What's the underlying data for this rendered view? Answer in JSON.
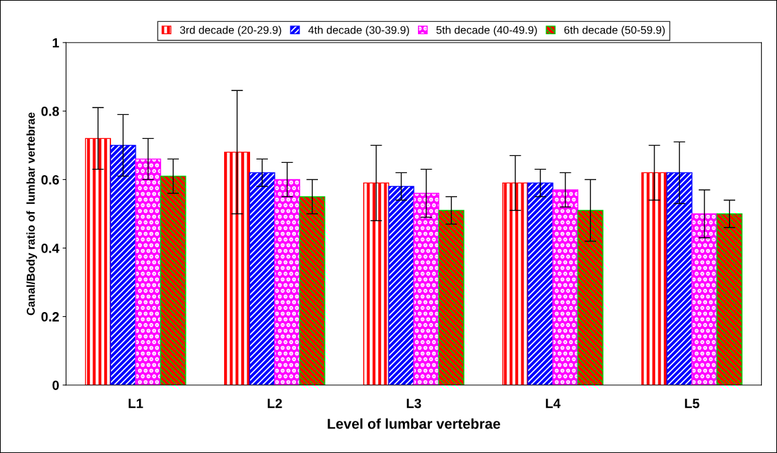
{
  "chart_data": {
    "type": "bar",
    "xlabel": "Level of lumbar vertebrae",
    "ylabel": "Canal/Body ratio of  lumbar vertebrae",
    "categories": [
      "L1",
      "L2",
      "L3",
      "L4",
      "L5"
    ],
    "series": [
      {
        "name": "3rd decade (20-29.9)",
        "color": "#ff0000",
        "values": [
          0.72,
          0.68,
          0.59,
          0.59,
          0.62
        ],
        "errors": [
          0.09,
          0.18,
          0.11,
          0.08,
          0.08
        ]
      },
      {
        "name": "4th decade (30-39.9)",
        "color": "#0000ff",
        "values": [
          0.7,
          0.62,
          0.58,
          0.59,
          0.62
        ],
        "errors": [
          0.09,
          0.04,
          0.04,
          0.04,
          0.09
        ]
      },
      {
        "name": "5th decade (40-49.9)",
        "color": "#ff00ff",
        "values": [
          0.66,
          0.6,
          0.56,
          0.57,
          0.5
        ],
        "errors": [
          0.06,
          0.05,
          0.07,
          0.05,
          0.07
        ]
      },
      {
        "name": "6th decade (50-59.9)",
        "color": "#00cc00",
        "values": [
          0.61,
          0.55,
          0.51,
          0.51,
          0.5
        ],
        "errors": [
          0.05,
          0.05,
          0.04,
          0.09,
          0.04
        ]
      }
    ],
    "ylim": [
      0,
      1
    ],
    "yticks": [
      0,
      0.2,
      0.4,
      0.6,
      0.8,
      1
    ],
    "grid": false,
    "legend": "top"
  }
}
